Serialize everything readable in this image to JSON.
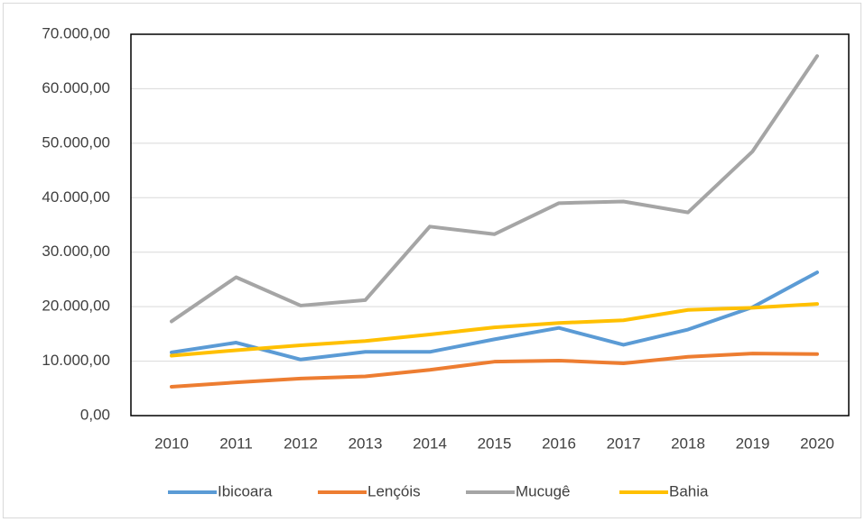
{
  "chart_data": {
    "type": "line",
    "categories": [
      "2010",
      "2011",
      "2012",
      "2013",
      "2014",
      "2015",
      "2016",
      "2017",
      "2018",
      "2019",
      "2020"
    ],
    "series": [
      {
        "name": "Ibicoara",
        "color": "#5b9bd5",
        "values": [
          11600,
          13400,
          10300,
          11700,
          11700,
          14000,
          16100,
          13000,
          15800,
          19900,
          26300
        ]
      },
      {
        "name": "Lençóis",
        "color": "#ed7d31",
        "values": [
          5300,
          6100,
          6800,
          7200,
          8400,
          9900,
          10100,
          9600,
          10800,
          11400,
          11300
        ]
      },
      {
        "name": "Mucugê",
        "color": "#a5a5a5",
        "values": [
          17300,
          25400,
          20200,
          21200,
          34700,
          33300,
          39000,
          39300,
          37300,
          48500,
          66000
        ]
      },
      {
        "name": "Bahia",
        "color": "#ffc000",
        "values": [
          11000,
          12000,
          12900,
          13700,
          14900,
          16200,
          17000,
          17500,
          19400,
          19800,
          20500
        ]
      }
    ],
    "ylim": [
      0,
      70000
    ],
    "yticks": [
      {
        "value": 0,
        "label": "0,00"
      },
      {
        "value": 10000,
        "label": "10.000,00"
      },
      {
        "value": 20000,
        "label": "20.000,00"
      },
      {
        "value": 30000,
        "label": "30.000,00"
      },
      {
        "value": 40000,
        "label": "40.000,00"
      },
      {
        "value": 50000,
        "label": "50.000,00"
      },
      {
        "value": 60000,
        "label": "60.000,00"
      },
      {
        "value": 70000,
        "label": "70.000,00"
      }
    ],
    "grid": true,
    "legend": "bottom"
  }
}
